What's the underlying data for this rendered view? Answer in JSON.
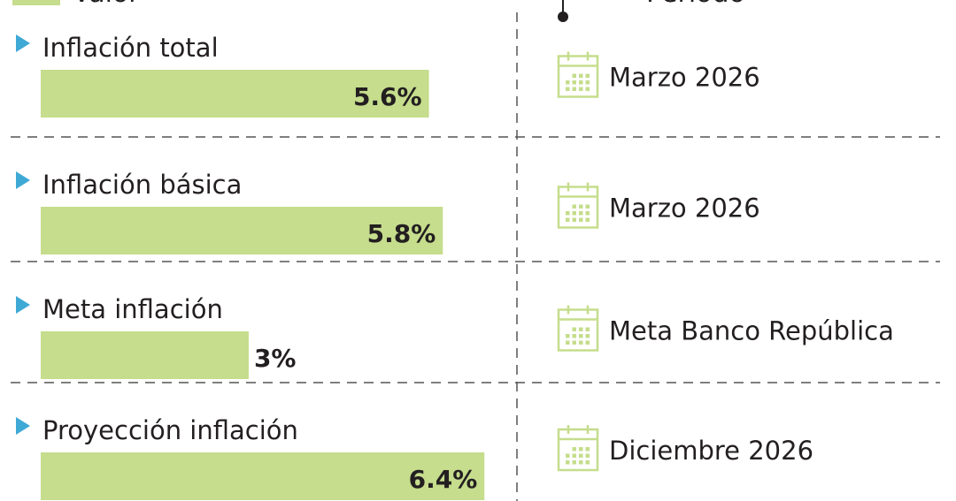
{
  "chart_data": {
    "type": "bar",
    "orientation": "horizontal",
    "legend": {
      "value_label": "Valor",
      "period_label": "Periodo"
    },
    "categories": [
      "Inflación total",
      "Inflación básica",
      "Meta inflación",
      "Proyección inflación"
    ],
    "values": [
      5.6,
      5.8,
      3,
      6.4
    ],
    "value_labels": [
      "5.6%",
      "5.8%",
      "3%",
      "6.4%"
    ],
    "periods": [
      "Marzo 2026",
      "Marzo 2026",
      "Meta Banco República",
      "Diciembre 2026"
    ],
    "xlim": [
      0,
      7.15
    ],
    "colors": {
      "bar": "#c5dd8c",
      "marker": "#3fa9d6",
      "icon": "#c5dd8c",
      "text": "#231f20",
      "divider": "#555555"
    }
  }
}
